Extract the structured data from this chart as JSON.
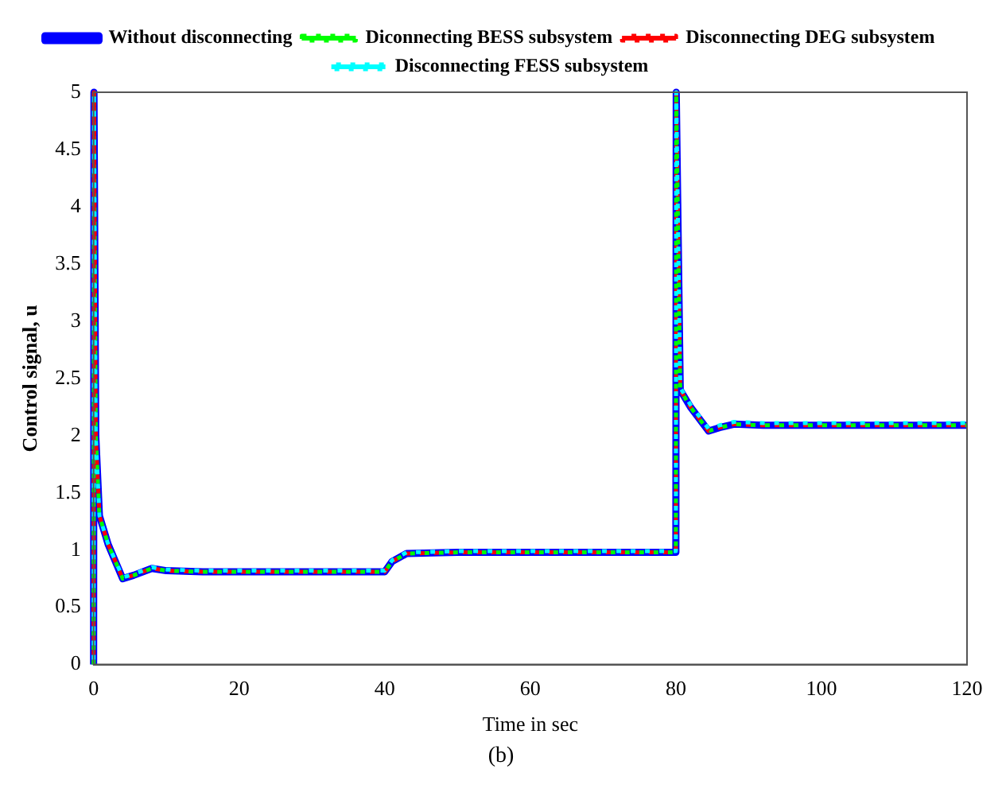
{
  "chart_data": {
    "type": "line",
    "xlabel": "Time in sec",
    "ylabel": "Control signal, u",
    "annotations": [
      "(b)"
    ],
    "xlim": [
      0,
      120
    ],
    "ylim": [
      0,
      5
    ],
    "xticks": [
      0,
      20,
      40,
      60,
      80,
      100,
      120
    ],
    "yticks": [
      0,
      0.5,
      1,
      1.5,
      2,
      2.5,
      3,
      3.5,
      4,
      4.5,
      5
    ],
    "grid": false,
    "legend": "top",
    "marker": "none",
    "x": [
      0,
      0.05,
      0.3,
      0.8,
      2,
      4,
      5.5,
      8,
      10,
      15,
      40,
      41,
      43,
      50,
      80,
      80.05,
      80.6,
      82,
      84.5,
      86,
      88,
      92,
      120
    ],
    "series": [
      {
        "name": "Without disconnecting",
        "color": "#0000ff",
        "line_style": "solid",
        "values": [
          0,
          5,
          2,
          1.3,
          1.05,
          0.75,
          0.78,
          0.84,
          0.82,
          0.81,
          0.81,
          0.9,
          0.97,
          0.98,
          0.98,
          5,
          2.4,
          2.25,
          2.04,
          2.07,
          2.1,
          2.09,
          2.09
        ]
      },
      {
        "name": "Diconnecting BESS subsystem",
        "color": "#00ff00",
        "line_style": "dotted",
        "values": [
          0,
          5,
          2,
          1.3,
          1.05,
          0.75,
          0.78,
          0.84,
          0.82,
          0.81,
          0.81,
          0.9,
          0.97,
          0.98,
          0.98,
          5,
          2.4,
          2.25,
          2.04,
          2.07,
          2.1,
          2.09,
          2.09
        ]
      },
      {
        "name": "Disconnecting DEG subsystem",
        "color": "#ff0000",
        "line_style": "dotted",
        "values": [
          0,
          5,
          2,
          1.3,
          1.05,
          0.75,
          0.78,
          0.84,
          0.82,
          0.81,
          0.81,
          0.9,
          0.97,
          0.98,
          0.98,
          5,
          2.4,
          2.25,
          2.04,
          2.07,
          2.1,
          2.09,
          2.09
        ]
      },
      {
        "name": "Disconnecting FESS subsystem",
        "color": "#00ffff",
        "line_style": "dotted",
        "values": [
          0,
          5,
          2,
          1.3,
          1.05,
          0.76,
          0.79,
          0.85,
          0.83,
          0.82,
          0.82,
          0.91,
          0.98,
          0.99,
          0.99,
          5,
          2.42,
          2.27,
          2.06,
          2.09,
          2.12,
          2.11,
          2.11
        ]
      }
    ]
  }
}
